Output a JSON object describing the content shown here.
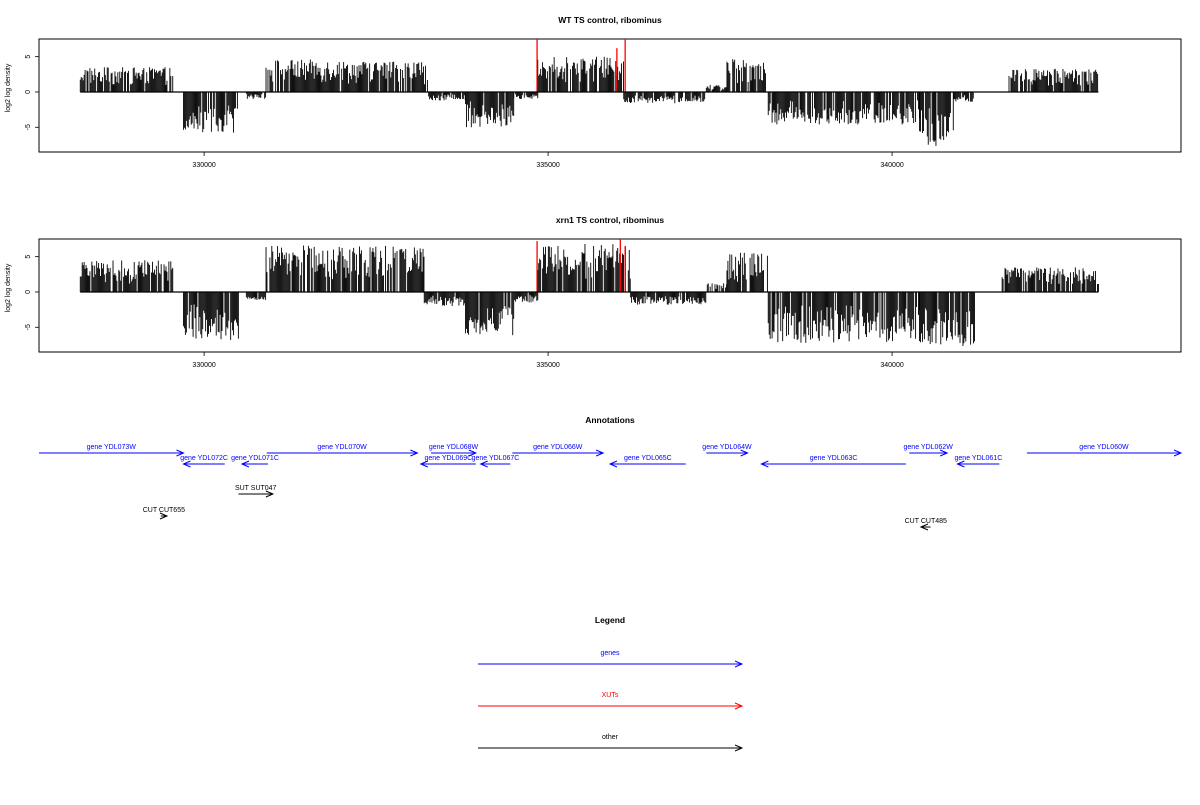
{
  "chart_data": [
    {
      "type": "bar",
      "title": "WT TS control, ribominus",
      "ylabel": "log2 log density",
      "xlabel": "",
      "x_ticks": [
        330000,
        335000,
        340000
      ],
      "x_tick_labels": [
        "330000",
        "335000",
        "340000"
      ],
      "y_ticks": [
        -5,
        0,
        5
      ],
      "y_tick_labels": [
        "-5",
        "0",
        "5"
      ],
      "xlim": [
        327600,
        344200
      ],
      "ylim": [
        -8.5,
        7.5
      ],
      "grid": false,
      "regions": [
        {
          "start": 328200,
          "end": 329550,
          "sign": 1,
          "amp": 3.5
        },
        {
          "start": 329700,
          "end": 330500,
          "sign": -1,
          "amp": 5.8
        },
        {
          "start": 330600,
          "end": 330900,
          "sign": -1,
          "amp": 1.0
        },
        {
          "start": 330900,
          "end": 332000,
          "sign": 1,
          "amp": 4.6
        },
        {
          "start": 332000,
          "end": 333250,
          "sign": 1,
          "amp": 4.4
        },
        {
          "start": 333250,
          "end": 333800,
          "sign": -1,
          "amp": 1.2
        },
        {
          "start": 333800,
          "end": 334500,
          "sign": -1,
          "amp": 5.0
        },
        {
          "start": 334500,
          "end": 334850,
          "sign": -1,
          "amp": 1.0
        },
        {
          "start": 334850,
          "end": 336100,
          "sign": 1,
          "amp": 5.0
        },
        {
          "start": 336100,
          "end": 337300,
          "sign": -1,
          "amp": 1.6
        },
        {
          "start": 337300,
          "end": 337600,
          "sign": 1,
          "amp": 1.0
        },
        {
          "start": 337600,
          "end": 338200,
          "sign": 1,
          "amp": 4.8
        },
        {
          "start": 338200,
          "end": 340400,
          "sign": -1,
          "amp": 4.6
        },
        {
          "start": 340400,
          "end": 340900,
          "sign": -1,
          "amp": 7.8
        },
        {
          "start": 340900,
          "end": 341200,
          "sign": -1,
          "amp": 1.5
        },
        {
          "start": 341700,
          "end": 343000,
          "sign": 1,
          "amp": 3.3
        }
      ],
      "highlights": [
        {
          "x": 334840,
          "value": 7.4,
          "color": "#ff0000"
        },
        {
          "x": 336120,
          "value": 7.4,
          "color": "#ff0000"
        },
        {
          "x": 336000,
          "value": 6.2,
          "color": "#ff0000"
        }
      ]
    },
    {
      "type": "bar",
      "title": "xrn1 TS control, ribominus",
      "ylabel": "log2 log density",
      "xlabel": "",
      "x_ticks": [
        330000,
        335000,
        340000
      ],
      "x_tick_labels": [
        "330000",
        "335000",
        "340000"
      ],
      "y_ticks": [
        -5,
        0,
        5
      ],
      "y_tick_labels": [
        "-5",
        "0",
        "5"
      ],
      "xlim": [
        327600,
        344200
      ],
      "ylim": [
        -8.5,
        7.5
      ],
      "grid": false,
      "regions": [
        {
          "start": 328200,
          "end": 329550,
          "sign": 1,
          "amp": 4.5
        },
        {
          "start": 329700,
          "end": 330500,
          "sign": -1,
          "amp": 6.8
        },
        {
          "start": 330600,
          "end": 330900,
          "sign": -1,
          "amp": 1.2
        },
        {
          "start": 330900,
          "end": 333200,
          "sign": 1,
          "amp": 6.6
        },
        {
          "start": 333200,
          "end": 333800,
          "sign": -1,
          "amp": 2.0
        },
        {
          "start": 333800,
          "end": 334500,
          "sign": -1,
          "amp": 6.2
        },
        {
          "start": 334500,
          "end": 334850,
          "sign": -1,
          "amp": 1.5
        },
        {
          "start": 334850,
          "end": 336200,
          "sign": 1,
          "amp": 6.8
        },
        {
          "start": 336200,
          "end": 337300,
          "sign": -1,
          "amp": 1.8
        },
        {
          "start": 337300,
          "end": 337600,
          "sign": 1,
          "amp": 1.3
        },
        {
          "start": 337600,
          "end": 338200,
          "sign": 1,
          "amp": 5.6
        },
        {
          "start": 338200,
          "end": 340400,
          "sign": -1,
          "amp": 7.2
        },
        {
          "start": 340400,
          "end": 341200,
          "sign": -1,
          "amp": 7.8
        },
        {
          "start": 341600,
          "end": 343000,
          "sign": 1,
          "amp": 3.5
        }
      ],
      "highlights": [
        {
          "x": 334840,
          "value": 7.2,
          "color": "#ff0000"
        },
        {
          "x": 336050,
          "value": 7.4,
          "color": "#ff0000"
        },
        {
          "x": 336120,
          "value": 6.5,
          "color": "#ff0000"
        }
      ]
    }
  ],
  "annotations": {
    "title": "Annotations",
    "genes": [
      {
        "label": "gene YDL073W",
        "start": 327600,
        "end": 329700,
        "dir": "right"
      },
      {
        "label": "gene YDL072C",
        "start": 329700,
        "end": 330300,
        "dir": "left"
      },
      {
        "label": "gene YDL071C",
        "start": 330550,
        "end": 330930,
        "dir": "left"
      },
      {
        "label": "gene YDL070W",
        "start": 330910,
        "end": 333100,
        "dir": "right"
      },
      {
        "label": "gene YDL068W",
        "start": 333300,
        "end": 333950,
        "dir": "right"
      },
      {
        "label": "gene YDL069C",
        "start": 333150,
        "end": 333950,
        "dir": "left"
      },
      {
        "label": "gene YDL067C",
        "start": 334020,
        "end": 334450,
        "dir": "left"
      },
      {
        "label": "gene YDL066W",
        "start": 334480,
        "end": 335800,
        "dir": "right"
      },
      {
        "label": "gene YDL065C",
        "start": 335900,
        "end": 337000,
        "dir": "left"
      },
      {
        "label": "gene YDL064W",
        "start": 337300,
        "end": 337900,
        "dir": "right"
      },
      {
        "label": "gene YDL063C",
        "start": 338100,
        "end": 340200,
        "dir": "left"
      },
      {
        "label": "gene YDL062W",
        "start": 340250,
        "end": 340800,
        "dir": "right"
      },
      {
        "label": "gene YDL061C",
        "start": 340950,
        "end": 341560,
        "dir": "left"
      },
      {
        "label": "gene YDL060W",
        "start": 341960,
        "end": 344200,
        "dir": "right"
      }
    ],
    "other": [
      {
        "label": "SUT SUT047",
        "start": 330500,
        "end": 331000,
        "dir": "right"
      },
      {
        "label": "CUT CUT655",
        "start": 329370,
        "end": 329460,
        "dir": "right"
      },
      {
        "label": "CUT CUT485",
        "start": 340420,
        "end": 340560,
        "dir": "left"
      }
    ]
  },
  "legend": {
    "title": "Legend",
    "items": [
      {
        "label": "genes",
        "color": "#0000ff"
      },
      {
        "label": "XUTs",
        "color": "#ff0000"
      },
      {
        "label": "other",
        "color": "#000000"
      }
    ]
  }
}
